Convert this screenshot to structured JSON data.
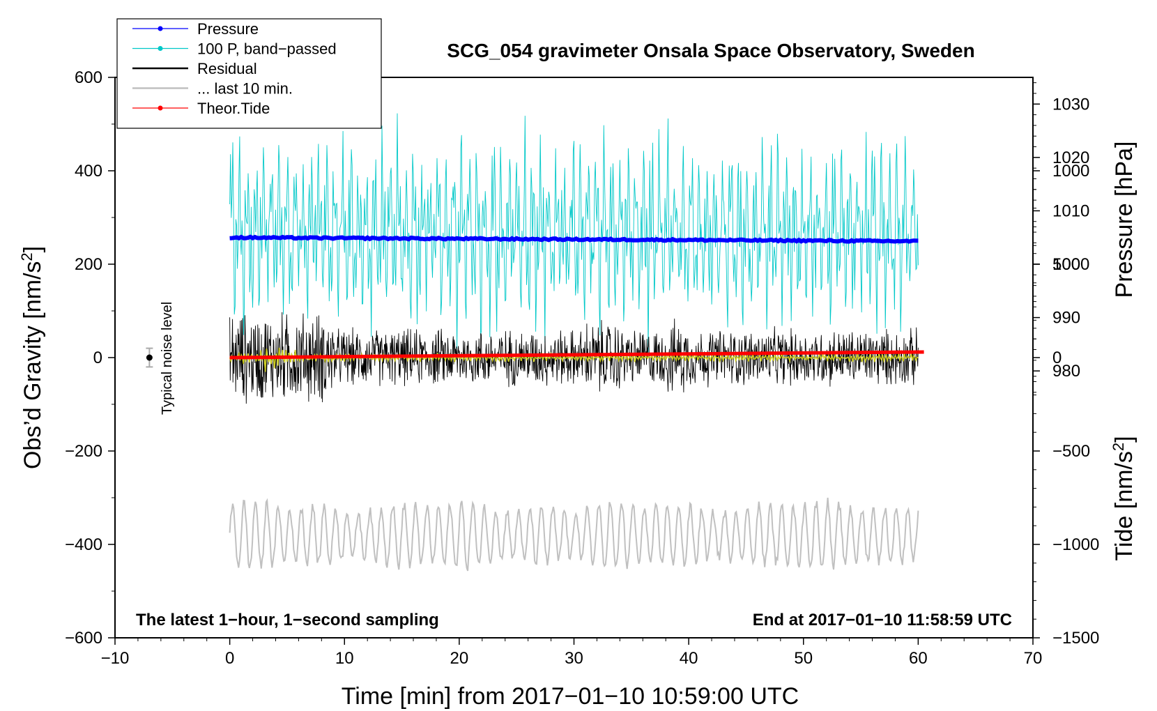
{
  "chart_data": {
    "type": "line",
    "title": "SCG_054 gravimeter Onsala Space Observatory, Sweden",
    "xlabel": "Time [min] from 2017−01−10 10:59:00 UTC",
    "ylabel": "Obs'd Gravity [nm/s²]",
    "ylabel_main": "Obs’d Gravity [nm/s",
    "ylabel_sup": "2",
    "ylabel_end": "]",
    "y2label": "Pressure [hPa]",
    "y3label": "Tide [nm/s²]",
    "y3label_main": "Tide [nm/s",
    "y3label_sup": "2",
    "y3label_end": "]",
    "xlim": [
      -10,
      70
    ],
    "ylim": [
      -600,
      600
    ],
    "pressure_lim": [
      1035,
      930
    ],
    "tide_lim": [
      -1500,
      1500
    ],
    "x_ticks": [
      -10,
      0,
      10,
      20,
      30,
      40,
      50,
      60,
      70
    ],
    "x_tick_labels": [
      "−10",
      "0",
      "10",
      "20",
      "30",
      "40",
      "50",
      "60",
      "70"
    ],
    "y_ticks": [
      -600,
      -400,
      -200,
      0,
      200,
      400,
      600
    ],
    "y_tick_labels": [
      "−600",
      "−400",
      "−200",
      "0",
      "200",
      "400",
      "600"
    ],
    "pressure_ticks": [
      980,
      990,
      1000,
      1010,
      1020,
      1030
    ],
    "pressure_tick_labels": [
      "980",
      "990",
      "1000",
      "1010",
      "1020",
      "1030"
    ],
    "tide_ticks": [
      -1500,
      -1000,
      -500,
      0,
      500,
      1000
    ],
    "tide_tick_labels": [
      "−1500",
      "−1000",
      "−500",
      "0",
      "500",
      "1000"
    ],
    "note_left": "The latest 1−hour, 1−second sampling",
    "note_right": "End at 2017−01−10 11:58:59 UTC",
    "noise_label": "Typical noise level",
    "noise": {
      "x": -7,
      "value": 0,
      "err": 20
    },
    "legend": [
      {
        "label": "Pressure",
        "color": "#0000ff",
        "marker": true
      },
      {
        "label": "100 P, band−passed",
        "color": "#00c8c8",
        "marker": true
      },
      {
        "label": "Residual",
        "color": "#000000",
        "marker": false
      },
      {
        "label": "... last 10 min.",
        "color": "#c0c0c0",
        "marker": false
      },
      {
        "label": "Theor.Tide",
        "color": "#ff0000",
        "marker": true
      }
    ],
    "series": [
      {
        "name": "Pressure",
        "axis": "pressure",
        "x_range": [
          0,
          60
        ],
        "start_hpa": 1005.0,
        "end_hpa": 1004.3
      },
      {
        "name": "100 P, band−passed",
        "axis": "gravity",
        "x_range": [
          0,
          60
        ],
        "center": 270,
        "amplitude": 230
      },
      {
        "name": "Residual",
        "axis": "gravity",
        "x_range": [
          0,
          60
        ],
        "center": 0,
        "amplitude": 70
      },
      {
        "name": "Residual, smoothed",
        "axis": "gravity",
        "x_range": [
          0,
          60
        ],
        "center": 0,
        "amplitude": 20
      },
      {
        "name": "... last 10 min.",
        "axis": "gravity",
        "x_range": [
          0,
          60
        ],
        "center": -380,
        "amplitude": 60
      },
      {
        "name": "Theor.Tide",
        "axis": "tide",
        "x_range": [
          0,
          60.5
        ],
        "start": 0,
        "end": 30
      }
    ]
  }
}
